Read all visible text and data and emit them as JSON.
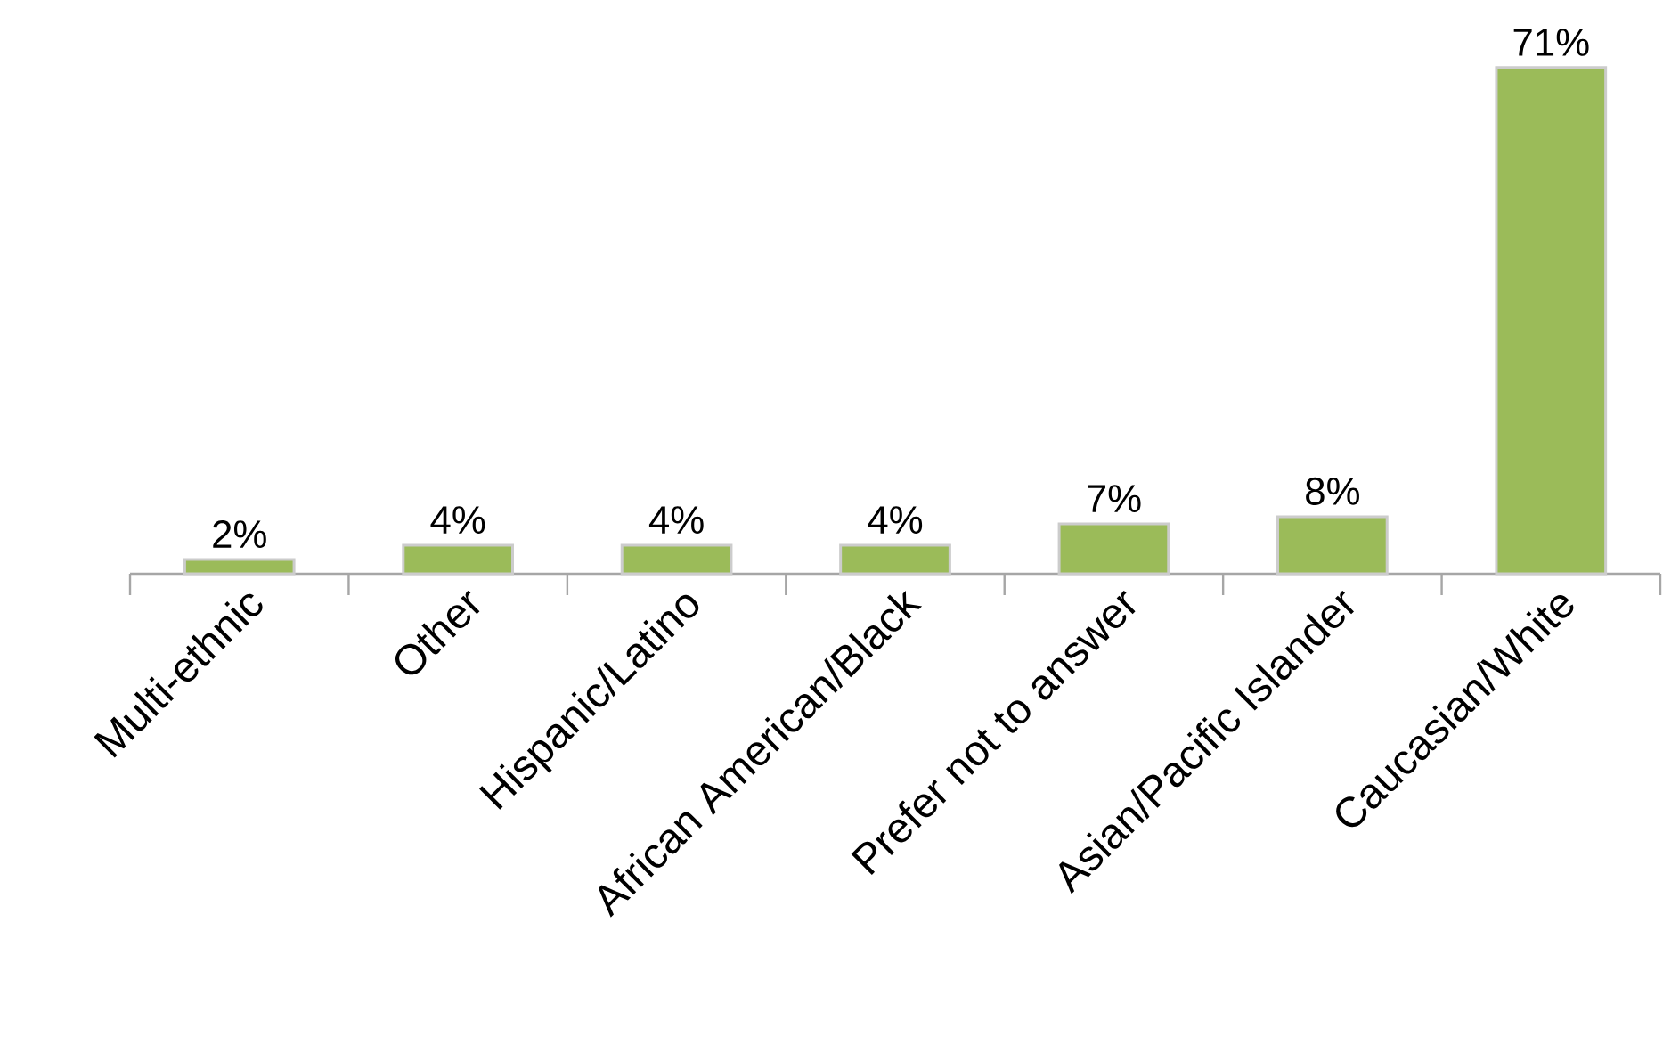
{
  "chart_data": {
    "type": "bar",
    "categories": [
      "Multi-ethnic",
      "Other",
      "Hispanic/Latino",
      "African American/Black",
      "Prefer not to answer",
      "Asian/Pacific Islander",
      "Caucasian/White"
    ],
    "values": [
      2,
      4,
      4,
      4,
      7,
      8,
      71
    ],
    "value_labels": [
      "2%",
      "4%",
      "4%",
      "4%",
      "7%",
      "8%",
      "71%"
    ],
    "color": "#9bbb59"
  }
}
